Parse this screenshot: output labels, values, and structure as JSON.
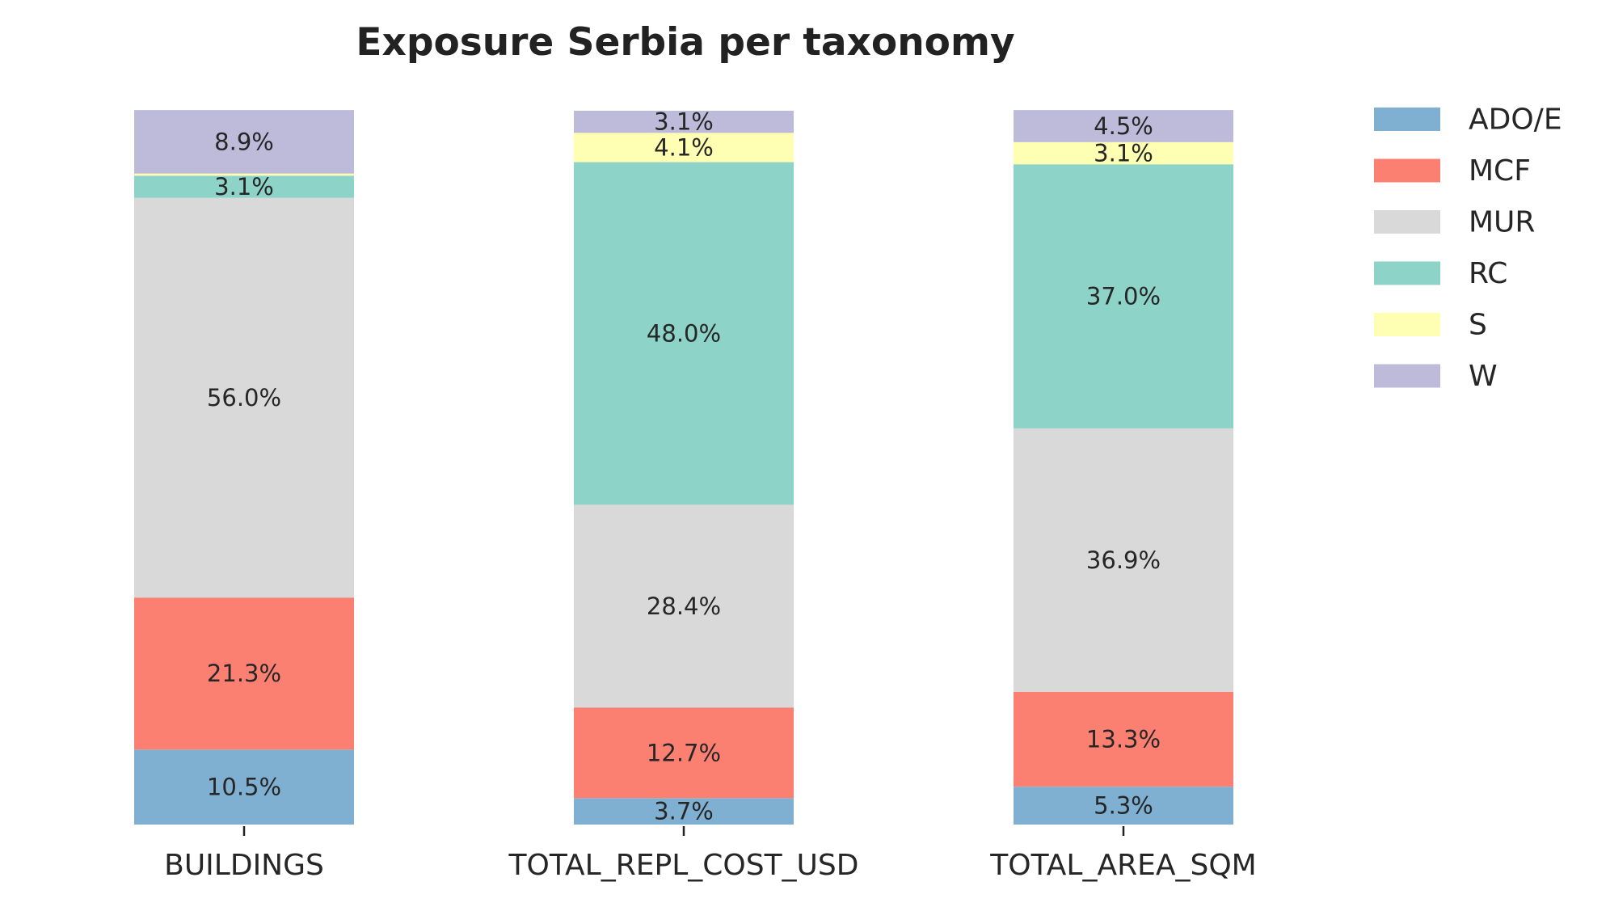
{
  "chart_data": {
    "type": "bar",
    "stacked": true,
    "normalized": true,
    "title": "Exposure Serbia per taxonomy",
    "xlabel": "",
    "ylabel": "",
    "ylim": [
      0,
      100
    ],
    "categories": [
      "BUILDINGS",
      "TOTAL_REPL_COST_USD",
      "TOTAL_AREA_SQM"
    ],
    "series": [
      {
        "name": "ADO/E",
        "color": "#7fb0d2",
        "values": [
          10.5,
          3.7,
          5.3
        ],
        "labels": [
          "10.5%",
          "3.7%",
          "5.3%"
        ]
      },
      {
        "name": "MCF",
        "color": "#fb8072",
        "values": [
          21.3,
          12.7,
          13.3
        ],
        "labels": [
          "21.3%",
          "12.7%",
          "13.3%"
        ]
      },
      {
        "name": "MUR",
        "color": "#d9d9d9",
        "values": [
          56.0,
          28.4,
          36.9
        ],
        "labels": [
          "56.0%",
          "28.4%",
          "36.9%"
        ]
      },
      {
        "name": "RC",
        "color": "#8dd3c7",
        "values": [
          3.1,
          48.0,
          37.0
        ],
        "labels": [
          "3.1%",
          "48.0%",
          "37.0%"
        ]
      },
      {
        "name": "S",
        "color": "#ffffb3",
        "values": [
          0.3,
          4.1,
          3.1
        ],
        "labels": [
          "",
          "4.1%",
          "3.1%"
        ]
      },
      {
        "name": "W",
        "color": "#bebada",
        "values": [
          8.9,
          3.1,
          4.5
        ],
        "labels": [
          "8.9%",
          "3.1%",
          "4.5%"
        ]
      }
    ],
    "grid": false,
    "legend": "top-right, outside plot"
  }
}
